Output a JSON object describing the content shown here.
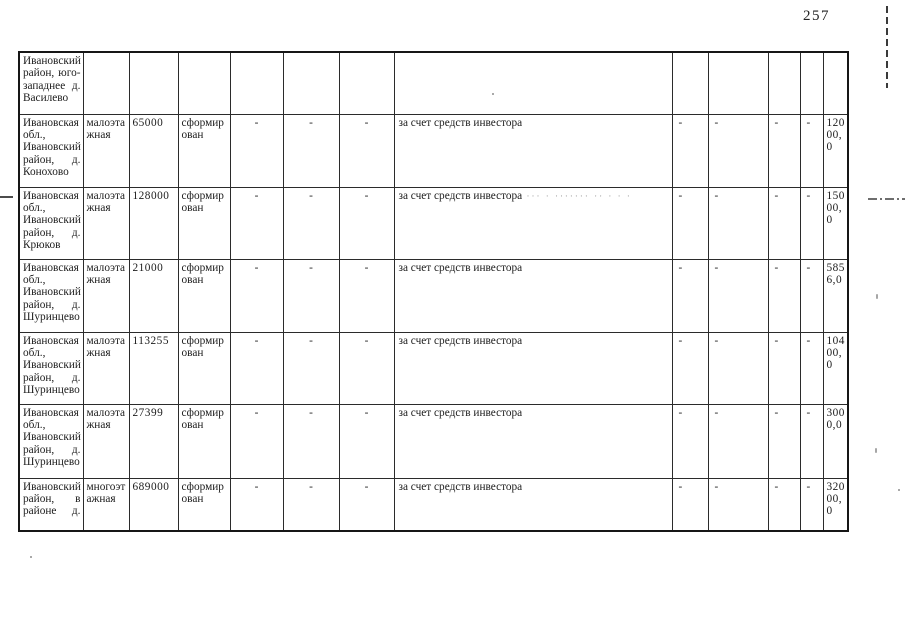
{
  "page_number": "257",
  "table": {
    "rows": [
      {
        "cells": [
          "Ивановский район, юго-западнее д. Василево",
          "",
          "",
          "",
          "",
          "",
          "",
          "",
          "",
          "",
          "",
          "",
          ""
        ]
      },
      {
        "cells": [
          "Ивановская обл., Ивановский район, д. Конохово",
          "малоэтажная",
          "65000",
          "сформирован",
          "-",
          "-",
          "-",
          "за счет средств инвестора",
          "-",
          "-",
          "-",
          "-",
          "12000,0"
        ]
      },
      {
        "cells": [
          "Ивановская обл., Ивановский район, д. Крюков",
          "малоэтажная",
          "128000",
          "сформирован",
          "-",
          "-",
          "-",
          "за счет средств инвестора",
          "-",
          "-",
          "-",
          "-",
          "15000,0"
        ],
        "noise": "··· · ······· ·· · · ·"
      },
      {
        "cells": [
          "Ивановская обл., Ивановский район, д. Шуринцево",
          "малоэтажная",
          "21000",
          "сформирован",
          "-",
          "-",
          "-",
          "за счет средств инвестора",
          "-",
          "-",
          "-",
          "-",
          "5856,0"
        ]
      },
      {
        "cells": [
          "Ивановская обл., Ивановский район, д. Шуринцево",
          "малоэтажная",
          "113255",
          "сформирован",
          "-",
          "-",
          "-",
          "за счет средств инвестора",
          "-",
          "-",
          "-",
          "-",
          "10400,0"
        ]
      },
      {
        "cells": [
          "Ивановская обл., Ивановский район, д. Шуринцево",
          "малоэтажная",
          "27399",
          "сформирован",
          "-",
          "-",
          "-",
          "за счет средств инвестора",
          "-",
          "-",
          "-",
          "-",
          "3000,0"
        ]
      },
      {
        "cells": [
          "Ивановский район, в районе д.",
          "многоэтажная",
          "689000",
          "сформирован",
          "-",
          "-",
          "-",
          "за счет средств инвестора",
          "-",
          "-",
          "-",
          "-",
          "32000,0"
        ]
      }
    ]
  }
}
